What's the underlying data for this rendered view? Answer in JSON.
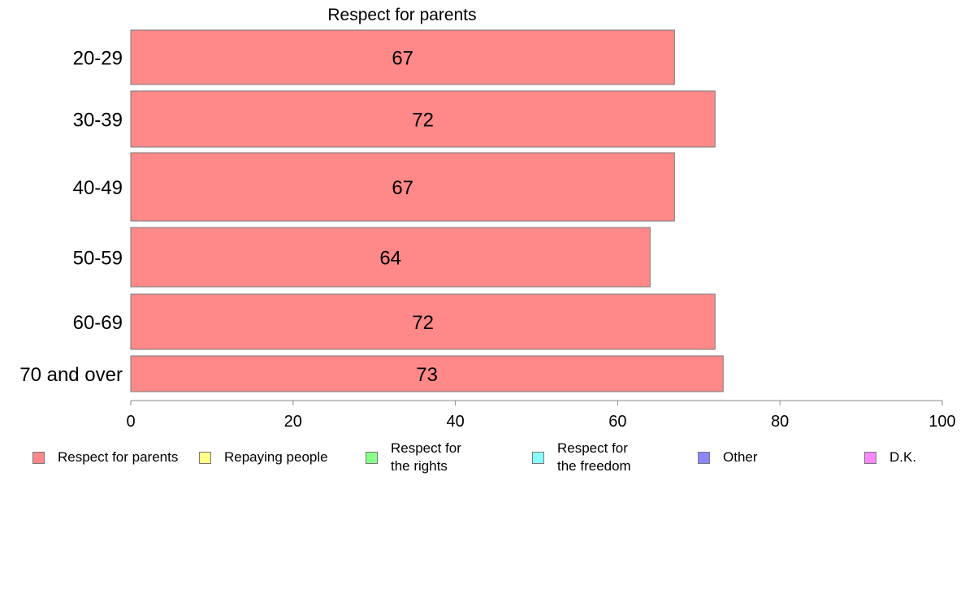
{
  "chart_data": {
    "type": "bar",
    "orientation": "horizontal",
    "title": "Respect for parents",
    "categories": [
      "20-29",
      "30-39",
      "40-49",
      "50-59",
      "60-69",
      "70 and over"
    ],
    "series": [
      {
        "name": "Respect for parents",
        "values": [
          67,
          72,
          67,
          64,
          72,
          73
        ],
        "color": "#ff8888"
      }
    ],
    "xlim": [
      0,
      100
    ],
    "xticks": [
      0,
      20,
      40,
      60,
      80,
      100
    ],
    "grid": false,
    "legend_placement": "bottom",
    "legend": [
      {
        "label": "Respect for parents",
        "color": "#ff8888"
      },
      {
        "label": "Repaying people",
        "color": "#ffff88"
      },
      {
        "label": "Respect for\nthe rights",
        "color": "#88ff88"
      },
      {
        "label": "Respect for\nthe freedom",
        "color": "#88ffff"
      },
      {
        "label": "Other",
        "color": "#8888ff"
      },
      {
        "label": "D.K.",
        "color": "#ff88ff"
      }
    ]
  }
}
